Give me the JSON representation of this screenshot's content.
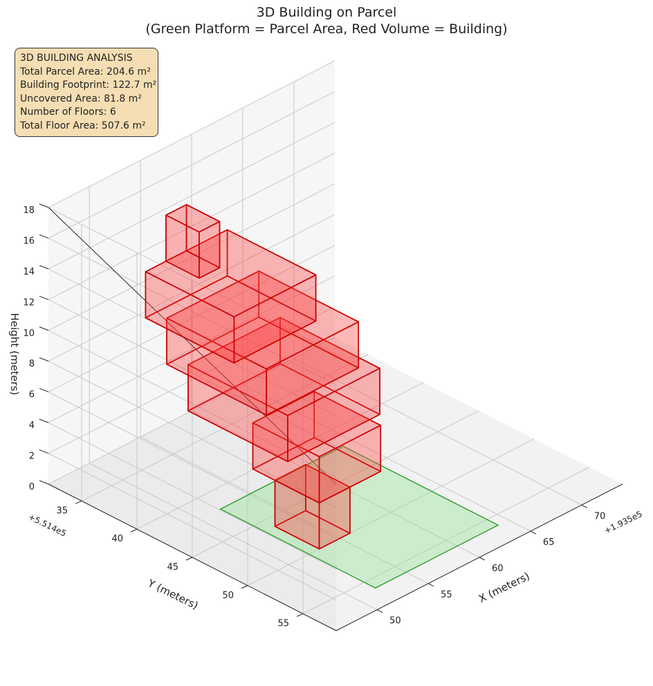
{
  "title": {
    "line1": "3D Building on Parcel",
    "line2": "(Green Platform = Parcel Area, Red Volume = Building)"
  },
  "info_box": {
    "heading": "3D BUILDING ANALYSIS",
    "lines": [
      "Total Parcel Area: 204.6 m²",
      "Building Footprint: 122.7 m²",
      "Uncovered Area: 81.8 m²",
      "Number of Floors: 6",
      "Total Floor Area: 507.6 m²"
    ]
  },
  "chart_data": {
    "type": "3d-box",
    "x_axis": {
      "label": "X (meters)",
      "offset_label": "+1.935e5",
      "ticks": [
        50,
        55,
        60,
        65,
        70
      ],
      "range": [
        46,
        74
      ]
    },
    "y_axis": {
      "label": "Y (meters)",
      "offset_label": "+5.514e5",
      "ticks": [
        35,
        40,
        45,
        50,
        55
      ],
      "range": [
        32,
        58
      ]
    },
    "z_axis": {
      "label": "Height (meters)",
      "ticks": [
        0,
        2,
        4,
        6,
        8,
        10,
        12,
        14,
        16,
        18
      ],
      "range": [
        0,
        18
      ]
    },
    "grid": true,
    "colors": {
      "parcel_fill": "#90e090",
      "parcel_edge": "#2e9e2e",
      "building_fill": "#ff3b3b",
      "building_edge": "#cc0000"
    },
    "parcel": {
      "x": [
        52,
        64
      ],
      "y": [
        42,
        56
      ],
      "z": 0
    },
    "floors": [
      {
        "floor": 1,
        "x": [
          53,
          56
        ],
        "y": [
          46,
          50
        ],
        "z": [
          0,
          3
        ]
      },
      {
        "floor": 2,
        "x": [
          53,
          59
        ],
        "y": [
          44,
          50
        ],
        "z": [
          3,
          6
        ]
      },
      {
        "floor": 3,
        "x": [
          51,
          60
        ],
        "y": [
          40,
          49
        ],
        "z": [
          6,
          9
        ]
      },
      {
        "floor": 4,
        "x": [
          50,
          59
        ],
        "y": [
          39,
          48
        ],
        "z": [
          9,
          12
        ]
      },
      {
        "floor": 5,
        "x": [
          49,
          57
        ],
        "y": [
          38,
          46
        ],
        "z": [
          12,
          15
        ]
      },
      {
        "floor": 6,
        "x": [
          51,
          53
        ],
        "y": [
          38,
          41
        ],
        "z": [
          15,
          18
        ]
      }
    ]
  }
}
